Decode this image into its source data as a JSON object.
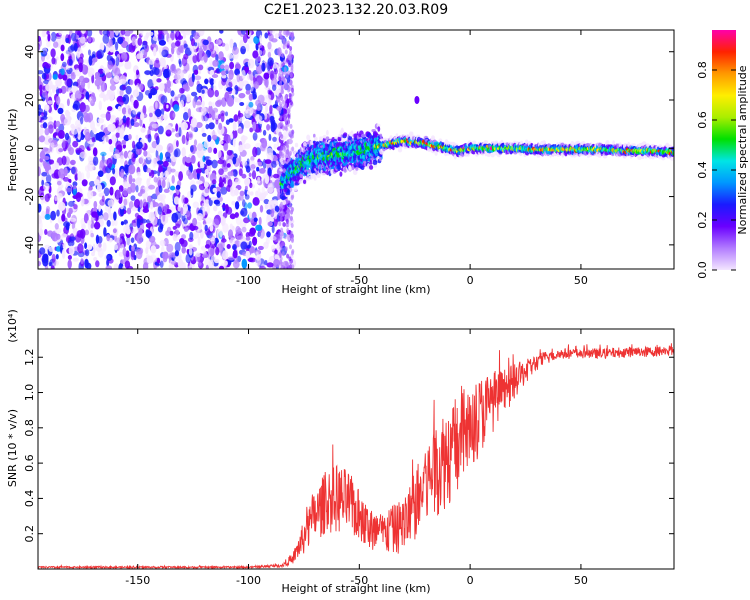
{
  "figure_title": "C2E1.2023.132.20.03.R09",
  "chart_data": [
    {
      "type": "heatmap",
      "title": "C2E1.2023.132.20.03.R09",
      "xlabel": "Height of straight line (km)",
      "ylabel": "Frequency (Hz)",
      "xlim": [
        -195,
        92
      ],
      "ylim": [
        -50,
        49
      ],
      "x_ticks": [
        -150,
        -100,
        -50,
        0,
        50
      ],
      "y_ticks": [
        -40,
        -20,
        0,
        20,
        40
      ],
      "colorbar": {
        "label": "Normalized spectral amplitude",
        "range": [
          0,
          0.96
        ],
        "ticks": [
          0.0,
          0.2,
          0.4,
          0.6,
          0.8
        ],
        "colormap": [
          "#f4e6ff",
          "#b27cff",
          "#6a00ff",
          "#1a1aff",
          "#0097ff",
          "#00e5e5",
          "#00e000",
          "#aaee00",
          "#ffee00",
          "#ff9900",
          "#ff2200",
          "#ff00aa"
        ]
      },
      "features": {
        "noise_region_x": [
          -195,
          -80
        ],
        "signal_trace": {
          "x": [
            -85,
            -80,
            -75,
            -70,
            -65,
            -60,
            -55,
            -50,
            -45,
            -40,
            -35,
            -30,
            -25,
            -20,
            -15,
            -10,
            -5,
            0,
            10,
            20,
            30,
            40,
            50,
            60,
            70,
            80,
            90
          ],
          "frequency_hz": [
            -15,
            -10,
            -6,
            -4,
            -3,
            -2.5,
            -2,
            -1.5,
            0,
            1,
            2,
            3,
            2.5,
            2,
            1,
            0,
            -1,
            0,
            0,
            0,
            -0.5,
            -0.5,
            -0.5,
            -0.5,
            -1,
            -1,
            -1.5
          ]
        },
        "spot": {
          "x": -24,
          "frequency_hz": 20
        }
      }
    },
    {
      "type": "line",
      "xlabel": "Height of straight line (km)",
      "ylabel": "SNR (10 * v/v)",
      "y_scale_label": "(x10⁴)",
      "xlim": [
        -195,
        92
      ],
      "ylim": [
        0,
        1.36
      ],
      "x_ticks": [
        -150,
        -100,
        -50,
        0,
        50
      ],
      "y_ticks": [
        0.2,
        0.4,
        0.6,
        0.8,
        1.0,
        1.2
      ],
      "series": [
        {
          "color": "#ee3333",
          "x": [
            -195,
            -150,
            -100,
            -85,
            -80,
            -75,
            -70,
            -65,
            -60,
            -55,
            -50,
            -45,
            -40,
            -35,
            -30,
            -25,
            -20,
            -15,
            -10,
            -5,
            0,
            5,
            10,
            15,
            20,
            25,
            30,
            35,
            40,
            50,
            60,
            70,
            80,
            92
          ],
          "y": [
            0.01,
            0.01,
            0.01,
            0.02,
            0.06,
            0.18,
            0.3,
            0.38,
            0.4,
            0.38,
            0.3,
            0.22,
            0.2,
            0.22,
            0.25,
            0.35,
            0.48,
            0.58,
            0.65,
            0.72,
            0.8,
            0.88,
            0.95,
            1.0,
            1.06,
            1.12,
            1.17,
            1.2,
            1.22,
            1.22,
            1.22,
            1.23,
            1.23,
            1.24
          ],
          "noise_amplitude": [
            0.005,
            0.005,
            0.005,
            0.01,
            0.03,
            0.1,
            0.15,
            0.18,
            0.2,
            0.18,
            0.15,
            0.13,
            0.12,
            0.14,
            0.16,
            0.2,
            0.25,
            0.28,
            0.3,
            0.28,
            0.25,
            0.22,
            0.18,
            0.14,
            0.1,
            0.07,
            0.05,
            0.04,
            0.03,
            0.03,
            0.03,
            0.03,
            0.03,
            0.03
          ]
        }
      ]
    }
  ]
}
